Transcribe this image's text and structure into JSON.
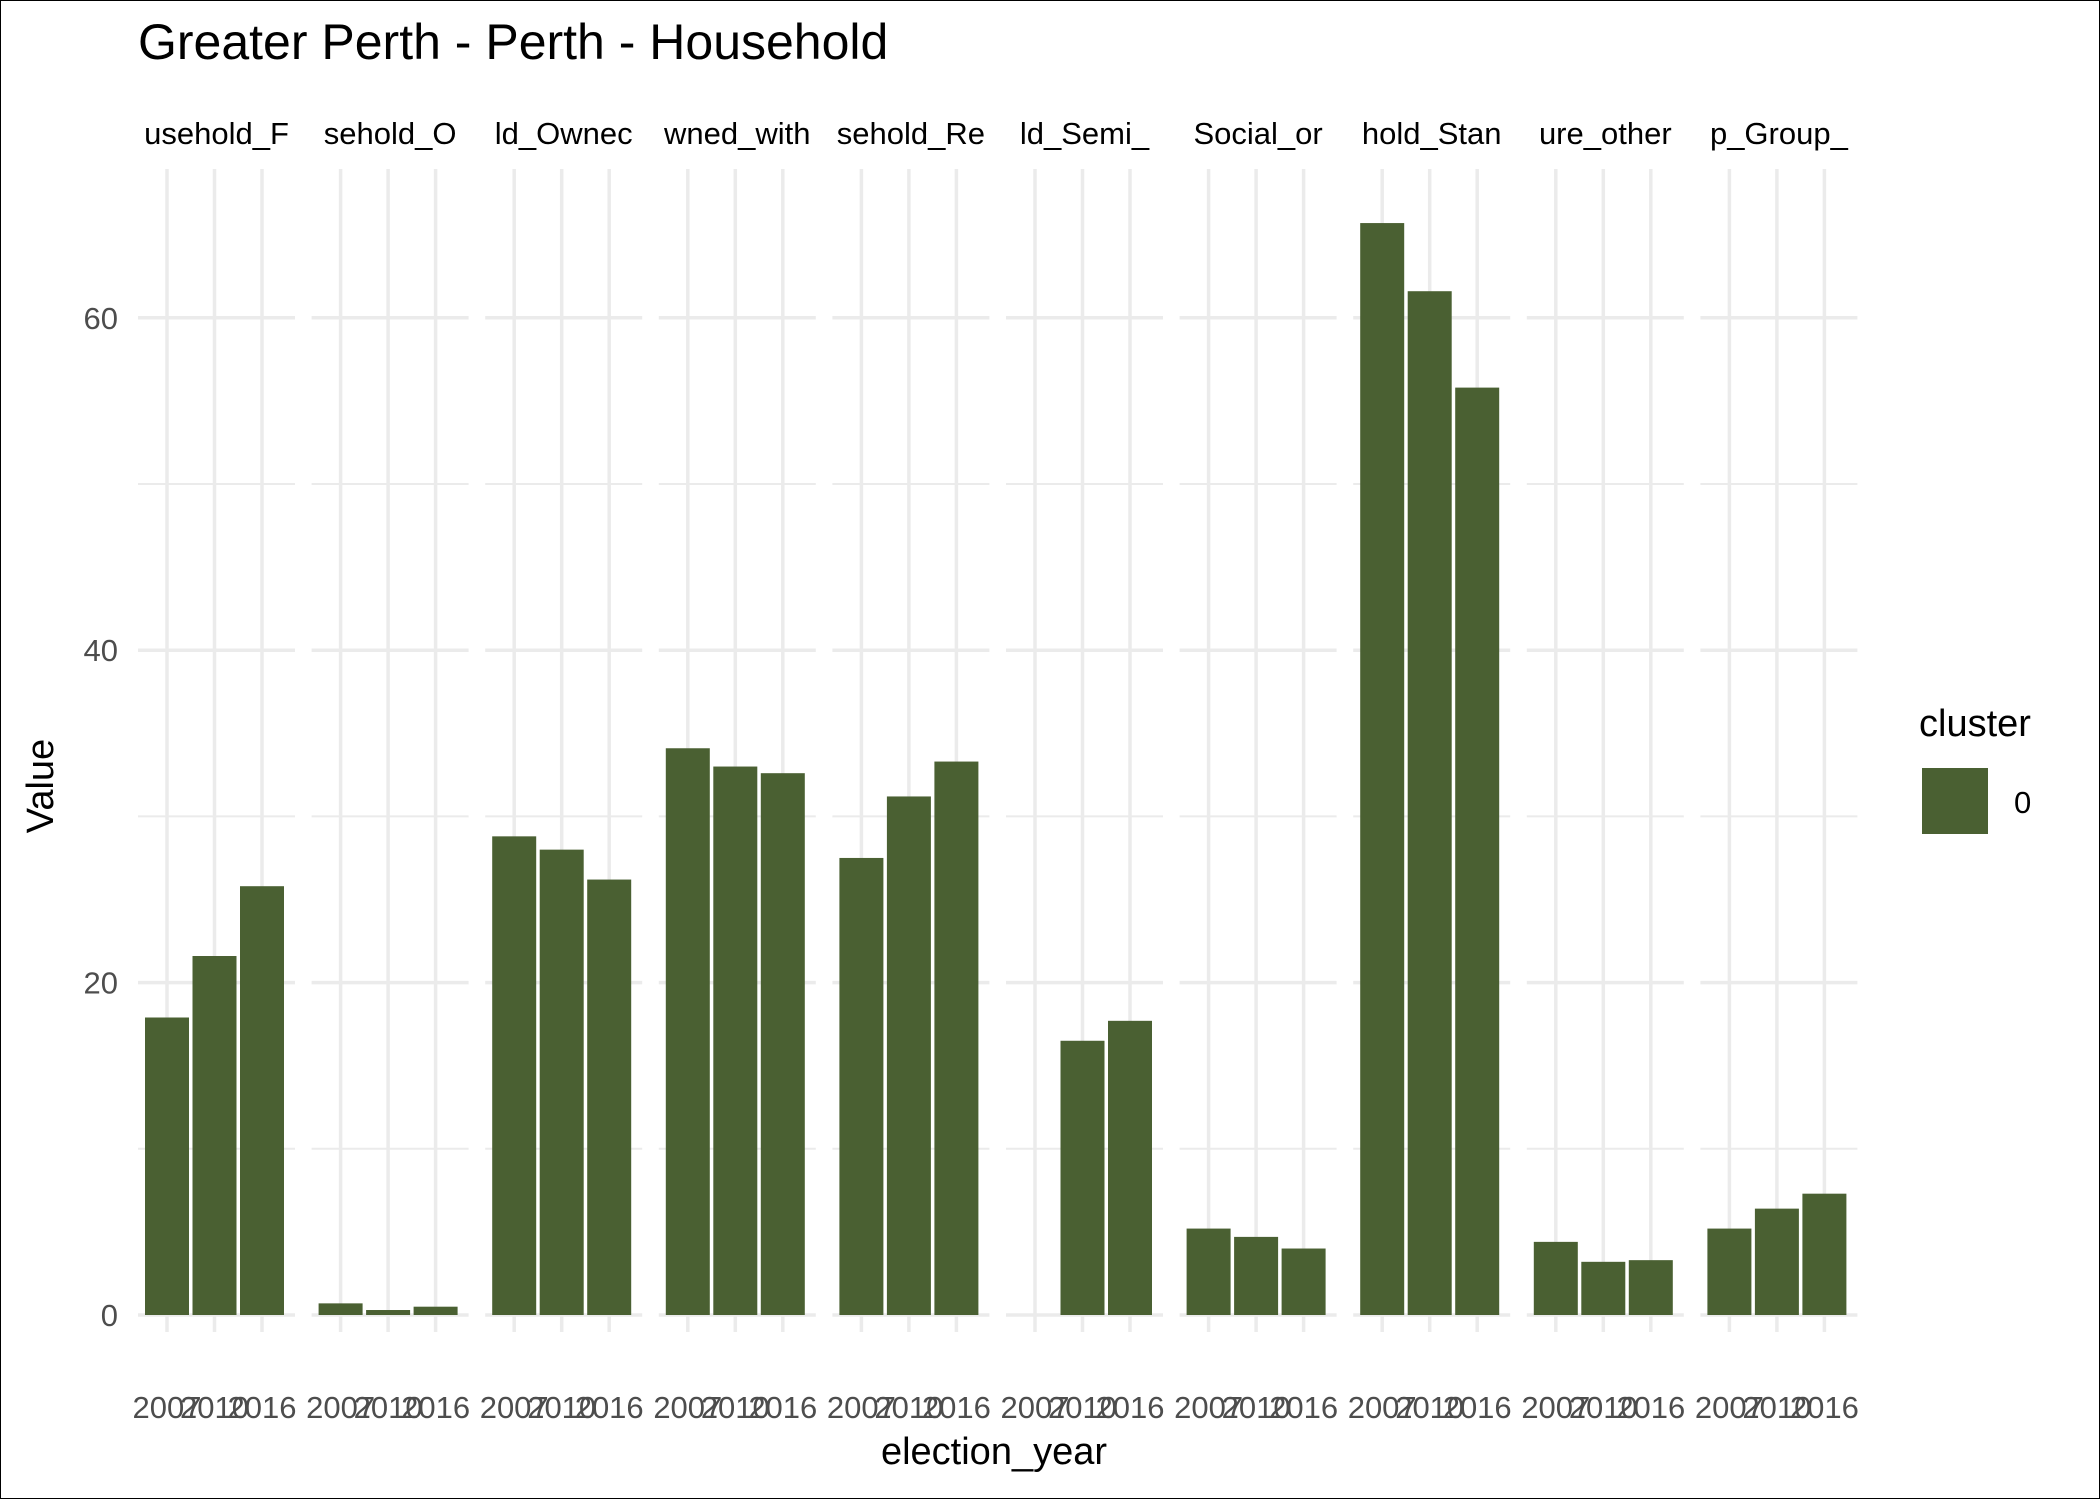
{
  "chart_data": {
    "type": "bar",
    "title": "Greater Perth - Perth - Household",
    "xlabel": "election_year",
    "ylabel": "Value",
    "ylim": [
      0,
      69
    ],
    "yticks": [
      0,
      20,
      40,
      60
    ],
    "grid": true,
    "legend": {
      "title": "cluster",
      "placement": "right",
      "entries": [
        {
          "label": "0",
          "color": "#4a6032"
        }
      ]
    },
    "categories": [
      "2007",
      "2010",
      "2016"
    ],
    "panels": [
      {
        "label": "usehold_F",
        "values": [
          17.9,
          21.6,
          25.8
        ]
      },
      {
        "label": "sehold_O",
        "values": [
          0.7,
          0.3,
          0.5
        ]
      },
      {
        "label": "ld_Ownec",
        "values": [
          28.8,
          28.0,
          26.2
        ]
      },
      {
        "label": "wned_with",
        "values": [
          34.1,
          33.0,
          32.6
        ]
      },
      {
        "label": "sehold_Re",
        "values": [
          27.5,
          31.2,
          33.3
        ]
      },
      {
        "label": "ld_Semi_",
        "values": [
          null,
          16.5,
          17.7
        ]
      },
      {
        "label": "Social_or",
        "values": [
          5.2,
          4.7,
          4.0
        ]
      },
      {
        "label": "hold_Stan",
        "values": [
          65.7,
          61.6,
          55.8
        ]
      },
      {
        "label": "ure_other",
        "values": [
          4.4,
          3.2,
          3.3
        ]
      },
      {
        "label": "p_Group_",
        "values": [
          5.2,
          6.4,
          7.3
        ]
      }
    ]
  },
  "colors": {
    "bar": "#4a6032",
    "grid": "#ebebeb",
    "text": "#000000",
    "axis_text": "#4d4d4d"
  }
}
